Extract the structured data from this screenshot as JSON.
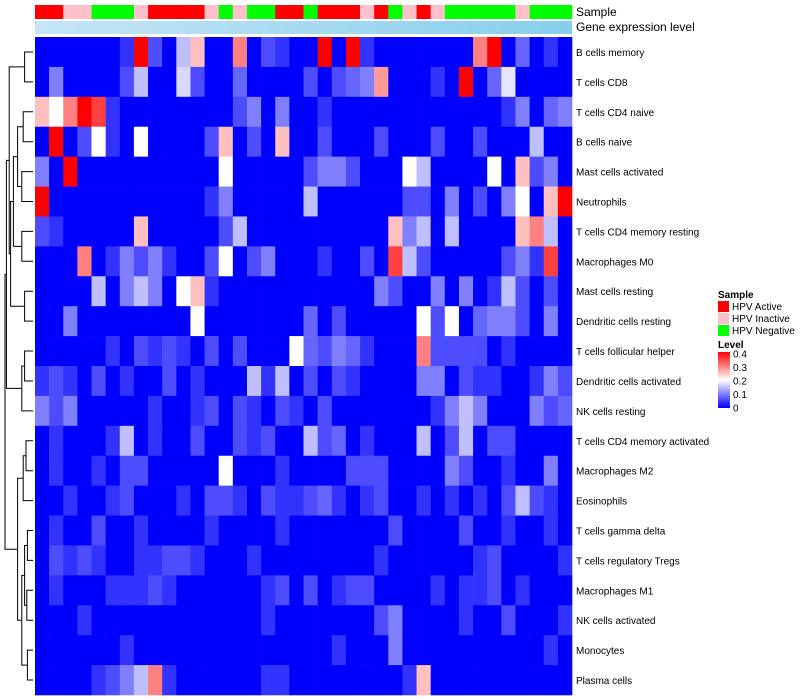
{
  "chart_data": {
    "type": "heatmap",
    "annotation_tracks": [
      "Sample",
      "Gene expression level"
    ],
    "sample_groups": [
      "A",
      "A",
      "I",
      "I",
      "N",
      "N",
      "N",
      "I",
      "A",
      "A",
      "A",
      "A",
      "I",
      "N",
      "I",
      "N",
      "N",
      "A",
      "A",
      "N",
      "A",
      "A",
      "A",
      "I",
      "A",
      "N",
      "I",
      "A",
      "I",
      "N",
      "N",
      "N",
      "N",
      "N",
      "I",
      "N",
      "N",
      "N"
    ],
    "gene_expression_track_color": "#87ceeb",
    "rows": [
      "B cells memory",
      "T cells CD8",
      "T cells CD4 naive",
      "B cells naive",
      "Mast cells activated",
      "Neutrophils",
      "T cells CD4 memory resting",
      "Macrophages M0",
      "Mast cells resting",
      "Dendritic cells resting",
      "T cells follicular helper",
      "Dendritic cells activated",
      "NK cells resting",
      "T cells CD4 memory activated",
      "Macrophages M2",
      "Eosinophils",
      "T cells gamma delta",
      "T cells regulatory  Tregs",
      "Macrophages M1",
      "NK cells activated",
      "Monocytes",
      "Plasma cells"
    ],
    "legend_sample": {
      "title": "Sample",
      "entries": [
        {
          "label": "HPV Active",
          "color": "#ff0000"
        },
        {
          "label": "HPV Inactive",
          "color": "#ffc0cb"
        },
        {
          "label": "HPV Negative",
          "color": "#00ff00"
        }
      ]
    },
    "legend_level": {
      "title": "Level",
      "ticks": [
        "0.4",
        "0.3",
        "0.2",
        "0.1",
        "0"
      ],
      "range": [
        0,
        0.4
      ],
      "colors": [
        "#0000ff",
        "#ffffff",
        "#ff0000"
      ]
    },
    "values": [
      [
        0.0,
        0.0,
        0.0,
        0.0,
        0.0,
        0.0,
        0.04,
        0.4,
        0.06,
        0.0,
        0.15,
        0.25,
        0.0,
        0.0,
        0.3,
        0.0,
        0.06,
        0.04,
        0.0,
        0.0,
        0.4,
        0.0,
        0.4,
        0.04,
        0.0,
        0.0,
        0.0,
        0.0,
        0.0,
        0.0,
        0.0,
        0.3,
        0.4,
        0.0,
        0.08,
        0.0,
        0.04,
        0.0
      ],
      [
        0.0,
        0.1,
        0.0,
        0.0,
        0.0,
        0.0,
        0.06,
        0.15,
        0.0,
        0.0,
        0.17,
        0.06,
        0.0,
        0.0,
        0.08,
        0.0,
        0.0,
        0.0,
        0.0,
        0.06,
        0.0,
        0.06,
        0.08,
        0.1,
        0.28,
        0.0,
        0.0,
        0.0,
        0.04,
        0.0,
        0.4,
        0.0,
        0.08,
        0.18,
        0.0,
        0.0,
        0.0,
        0.0
      ],
      [
        0.25,
        0.2,
        0.3,
        0.4,
        0.35,
        0.04,
        0.0,
        0.0,
        0.0,
        0.0,
        0.0,
        0.0,
        0.0,
        0.0,
        0.06,
        0.1,
        0.0,
        0.1,
        0.0,
        0.0,
        0.04,
        0.0,
        0.0,
        0.0,
        0.0,
        0.0,
        0.0,
        0.0,
        0.0,
        0.0,
        0.0,
        0.0,
        0.0,
        0.04,
        0.1,
        0.0,
        0.08,
        0.1
      ],
      [
        0.0,
        0.4,
        0.0,
        0.06,
        0.2,
        0.04,
        0.0,
        0.2,
        0.0,
        0.0,
        0.0,
        0.0,
        0.06,
        0.25,
        0.0,
        0.06,
        0.0,
        0.25,
        0.0,
        0.0,
        0.06,
        0.0,
        0.0,
        0.0,
        0.06,
        0.0,
        0.0,
        0.0,
        0.06,
        0.0,
        0.0,
        0.06,
        0.0,
        0.0,
        0.0,
        0.15,
        0.0,
        0.0
      ],
      [
        0.1,
        0.0,
        0.4,
        0.0,
        0.0,
        0.0,
        0.0,
        0.0,
        0.0,
        0.0,
        0.0,
        0.0,
        0.0,
        0.2,
        0.0,
        0.0,
        0.0,
        0.0,
        0.0,
        0.06,
        0.1,
        0.1,
        0.06,
        0.0,
        0.0,
        0.0,
        0.2,
        0.15,
        0.0,
        0.0,
        0.0,
        0.0,
        0.2,
        0.0,
        0.25,
        0.06,
        0.1,
        0.0
      ],
      [
        0.4,
        0.0,
        0.0,
        0.0,
        0.0,
        0.0,
        0.0,
        0.0,
        0.0,
        0.0,
        0.0,
        0.0,
        0.04,
        0.1,
        0.0,
        0.0,
        0.0,
        0.0,
        0.0,
        0.15,
        0.0,
        0.0,
        0.0,
        0.0,
        0.0,
        0.0,
        0.06,
        0.06,
        0.0,
        0.1,
        0.0,
        0.06,
        0.0,
        0.1,
        0.2,
        0.0,
        0.25,
        0.4
      ],
      [
        0.06,
        0.04,
        0.0,
        0.0,
        0.0,
        0.0,
        0.0,
        0.25,
        0.0,
        0.0,
        0.0,
        0.0,
        0.0,
        0.06,
        0.15,
        0.0,
        0.0,
        0.0,
        0.0,
        0.0,
        0.0,
        0.0,
        0.0,
        0.0,
        0.0,
        0.25,
        0.1,
        0.15,
        0.0,
        0.15,
        0.0,
        0.0,
        0.0,
        0.0,
        0.25,
        0.3,
        0.15,
        0.0
      ],
      [
        0.0,
        0.0,
        0.0,
        0.3,
        0.0,
        0.04,
        0.1,
        0.06,
        0.1,
        0.04,
        0.0,
        0.0,
        0.06,
        0.2,
        0.0,
        0.06,
        0.1,
        0.0,
        0.0,
        0.0,
        0.04,
        0.0,
        0.0,
        0.06,
        0.0,
        0.35,
        0.15,
        0.06,
        0.0,
        0.0,
        0.0,
        0.0,
        0.0,
        0.06,
        0.1,
        0.04,
        0.35,
        0.0
      ],
      [
        0.0,
        0.0,
        0.0,
        0.0,
        0.15,
        0.0,
        0.1,
        0.15,
        0.1,
        0.0,
        0.2,
        0.25,
        0.04,
        0.0,
        0.0,
        0.0,
        0.0,
        0.0,
        0.0,
        0.0,
        0.0,
        0.0,
        0.0,
        0.0,
        0.1,
        0.06,
        0.0,
        0.0,
        0.1,
        0.0,
        0.1,
        0.0,
        0.04,
        0.15,
        0.06,
        0.0,
        0.06,
        0.0
      ],
      [
        0.0,
        0.0,
        0.1,
        0.0,
        0.0,
        0.0,
        0.0,
        0.0,
        0.0,
        0.0,
        0.0,
        0.2,
        0.0,
        0.0,
        0.0,
        0.0,
        0.0,
        0.0,
        0.0,
        0.08,
        0.0,
        0.06,
        0.0,
        0.0,
        0.0,
        0.0,
        0.0,
        0.2,
        0.06,
        0.2,
        0.0,
        0.08,
        0.1,
        0.1,
        0.06,
        0.0,
        0.1,
        0.0
      ],
      [
        0.0,
        0.0,
        0.0,
        0.0,
        0.0,
        0.04,
        0.0,
        0.06,
        0.04,
        0.06,
        0.04,
        0.0,
        0.06,
        0.0,
        0.06,
        0.0,
        0.0,
        0.0,
        0.2,
        0.08,
        0.06,
        0.1,
        0.08,
        0.04,
        0.0,
        0.0,
        0.0,
        0.3,
        0.06,
        0.06,
        0.06,
        0.06,
        0.0,
        0.04,
        0.0,
        0.0,
        0.0,
        0.0
      ],
      [
        0.04,
        0.06,
        0.04,
        0.0,
        0.06,
        0.0,
        0.04,
        0.0,
        0.0,
        0.06,
        0.0,
        0.04,
        0.0,
        0.0,
        0.0,
        0.15,
        0.04,
        0.15,
        0.0,
        0.06,
        0.0,
        0.06,
        0.04,
        0.0,
        0.0,
        0.0,
        0.0,
        0.1,
        0.1,
        0.0,
        0.06,
        0.04,
        0.04,
        0.0,
        0.0,
        0.04,
        0.1,
        0.06
      ],
      [
        0.1,
        0.06,
        0.1,
        0.0,
        0.0,
        0.0,
        0.0,
        0.0,
        0.04,
        0.0,
        0.0,
        0.04,
        0.06,
        0.0,
        0.06,
        0.04,
        0.0,
        0.06,
        0.04,
        0.0,
        0.06,
        0.0,
        0.0,
        0.0,
        0.0,
        0.0,
        0.0,
        0.0,
        0.04,
        0.1,
        0.15,
        0.1,
        0.0,
        0.0,
        0.0,
        0.1,
        0.06,
        0.08
      ],
      [
        0.0,
        0.04,
        0.0,
        0.0,
        0.0,
        0.04,
        0.15,
        0.0,
        0.04,
        0.0,
        0.0,
        0.06,
        0.0,
        0.0,
        0.06,
        0.04,
        0.06,
        0.0,
        0.0,
        0.15,
        0.06,
        0.08,
        0.0,
        0.04,
        0.0,
        0.0,
        0.0,
        0.15,
        0.0,
        0.06,
        0.15,
        0.0,
        0.06,
        0.06,
        0.0,
        0.0,
        0.0,
        0.0
      ],
      [
        0.0,
        0.04,
        0.0,
        0.0,
        0.04,
        0.0,
        0.06,
        0.06,
        0.0,
        0.0,
        0.0,
        0.0,
        0.0,
        0.2,
        0.0,
        0.0,
        0.0,
        0.04,
        0.0,
        0.0,
        0.0,
        0.0,
        0.06,
        0.06,
        0.06,
        0.0,
        0.0,
        0.0,
        0.0,
        0.1,
        0.06,
        0.0,
        0.0,
        0.04,
        0.0,
        0.0,
        0.1,
        0.0
      ],
      [
        0.0,
        0.0,
        0.04,
        0.0,
        0.0,
        0.04,
        0.06,
        0.0,
        0.0,
        0.0,
        0.04,
        0.0,
        0.06,
        0.06,
        0.04,
        0.0,
        0.06,
        0.04,
        0.04,
        0.06,
        0.08,
        0.04,
        0.0,
        0.04,
        0.06,
        0.0,
        0.0,
        0.04,
        0.0,
        0.04,
        0.0,
        0.04,
        0.0,
        0.06,
        0.15,
        0.06,
        0.04,
        0.0
      ],
      [
        0.0,
        0.04,
        0.0,
        0.0,
        0.06,
        0.0,
        0.0,
        0.04,
        0.0,
        0.0,
        0.0,
        0.0,
        0.04,
        0.0,
        0.0,
        0.0,
        0.0,
        0.04,
        0.0,
        0.0,
        0.0,
        0.0,
        0.0,
        0.0,
        0.0,
        0.06,
        0.0,
        0.0,
        0.0,
        0.0,
        0.06,
        0.0,
        0.0,
        0.04,
        0.0,
        0.0,
        0.04,
        0.0
      ],
      [
        0.0,
        0.06,
        0.04,
        0.06,
        0.04,
        0.0,
        0.0,
        0.04,
        0.04,
        0.06,
        0.06,
        0.04,
        0.0,
        0.0,
        0.0,
        0.04,
        0.0,
        0.0,
        0.0,
        0.0,
        0.0,
        0.0,
        0.0,
        0.0,
        0.04,
        0.0,
        0.0,
        0.0,
        0.0,
        0.0,
        0.0,
        0.04,
        0.06,
        0.0,
        0.0,
        0.0,
        0.0,
        0.04
      ],
      [
        0.0,
        0.04,
        0.0,
        0.0,
        0.0,
        0.04,
        0.04,
        0.04,
        0.06,
        0.04,
        0.0,
        0.0,
        0.0,
        0.0,
        0.0,
        0.0,
        0.04,
        0.06,
        0.0,
        0.06,
        0.0,
        0.04,
        0.06,
        0.06,
        0.0,
        0.0,
        0.0,
        0.0,
        0.04,
        0.0,
        0.04,
        0.04,
        0.06,
        0.0,
        0.04,
        0.0,
        0.0,
        0.0
      ],
      [
        0.0,
        0.0,
        0.0,
        0.04,
        0.0,
        0.0,
        0.0,
        0.0,
        0.0,
        0.0,
        0.0,
        0.0,
        0.0,
        0.0,
        0.0,
        0.0,
        0.04,
        0.0,
        0.0,
        0.0,
        0.0,
        0.0,
        0.0,
        0.0,
        0.06,
        0.1,
        0.0,
        0.0,
        0.0,
        0.0,
        0.04,
        0.0,
        0.0,
        0.06,
        0.0,
        0.0,
        0.0,
        0.04
      ],
      [
        0.0,
        0.0,
        0.0,
        0.0,
        0.0,
        0.0,
        0.04,
        0.0,
        0.0,
        0.0,
        0.0,
        0.0,
        0.0,
        0.0,
        0.0,
        0.0,
        0.0,
        0.0,
        0.0,
        0.0,
        0.0,
        0.04,
        0.0,
        0.0,
        0.0,
        0.1,
        0.0,
        0.0,
        0.0,
        0.0,
        0.0,
        0.0,
        0.0,
        0.0,
        0.0,
        0.0,
        0.04,
        0.0
      ],
      [
        0.0,
        0.0,
        0.0,
        0.0,
        0.04,
        0.06,
        0.1,
        0.15,
        0.3,
        0.04,
        0.0,
        0.0,
        0.0,
        0.0,
        0.0,
        0.0,
        0.04,
        0.04,
        0.0,
        0.0,
        0.0,
        0.0,
        0.0,
        0.0,
        0.0,
        0.0,
        0.04,
        0.25,
        0.0,
        0.0,
        0.0,
        0.0,
        0.0,
        0.0,
        0.0,
        0.0,
        0.0,
        0.0
      ]
    ]
  }
}
